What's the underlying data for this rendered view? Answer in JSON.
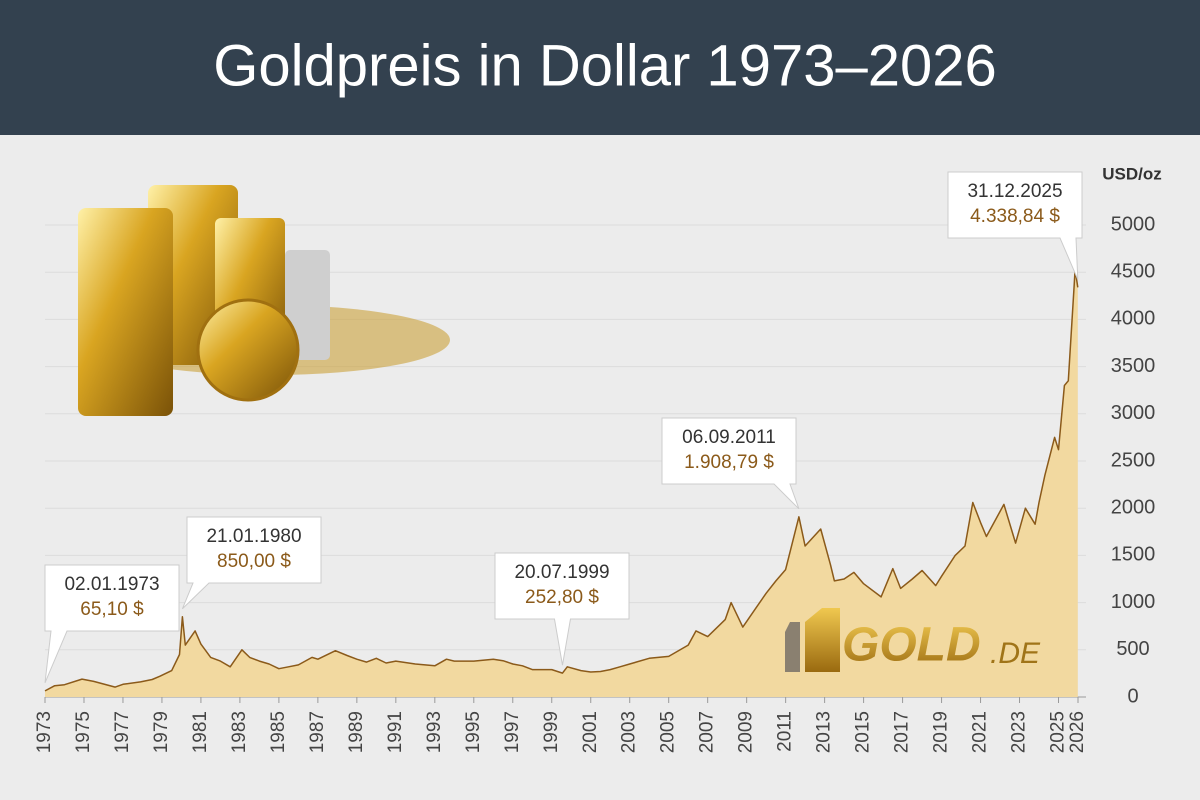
{
  "chart_data": {
    "type": "area",
    "title": "Goldpreis in Dollar 1973–2026",
    "y_label": "USD/oz",
    "logo_text": "GOLD",
    "logo_suffix": ".DE",
    "xlim": [
      1973,
      2026
    ],
    "xticks": [
      1973,
      1975,
      1977,
      1979,
      1981,
      1983,
      1985,
      1987,
      1989,
      1991,
      1993,
      1995,
      1997,
      1999,
      2001,
      2003,
      2005,
      2007,
      2009,
      2011,
      2013,
      2015,
      2017,
      2019,
      2021,
      2023,
      2025,
      2026
    ],
    "ylim": [
      0,
      5000
    ],
    "yticks": [
      0,
      500,
      1000,
      1500,
      2000,
      2500,
      3000,
      3500,
      4000,
      4500,
      5000
    ],
    "grid": true,
    "x": [
      1973.0,
      1973.5,
      1974.0,
      1974.9,
      1975.5,
      1976.6,
      1977.0,
      1977.9,
      1978.5,
      1978.9,
      1979.5,
      1979.9,
      1980.05,
      1980.2,
      1980.7,
      1981.0,
      1981.5,
      1982.0,
      1982.5,
      1983.1,
      1983.5,
      1984.0,
      1984.5,
      1985.0,
      1985.5,
      1986.0,
      1986.7,
      1987.0,
      1987.9,
      1988.5,
      1989.0,
      1989.5,
      1990.0,
      1990.5,
      1991.0,
      1992.0,
      1993.0,
      1993.6,
      1994.0,
      1995.0,
      1996.0,
      1996.5,
      1997.0,
      1997.5,
      1998.0,
      1999.0,
      1999.55,
      1999.8,
      2000.5,
      2001.0,
      2001.5,
      2002.0,
      2002.5,
      2003.0,
      2004.0,
      2005.0,
      2006.0,
      2006.4,
      2007.0,
      2007.9,
      2008.2,
      2008.8,
      2009.5,
      2010.0,
      2010.5,
      2011.0,
      2011.68,
      2012.0,
      2012.8,
      2013.3,
      2013.5,
      2014.0,
      2014.5,
      2015.0,
      2015.9,
      2016.5,
      2016.9,
      2017.5,
      2018.0,
      2018.7,
      2019.0,
      2019.7,
      2020.2,
      2020.6,
      2021.0,
      2021.3,
      2022.2,
      2022.8,
      2023.3,
      2023.8,
      2024.0,
      2024.3,
      2024.8,
      2025.0,
      2025.3,
      2025.5,
      2025.8,
      2025.85,
      2025.99
    ],
    "series": [
      {
        "name": "Goldpreis",
        "color": "#8b5a1a",
        "fill": "#f2d9a0",
        "values": [
          65.1,
          120,
          130,
          190,
          165,
          105,
          135,
          160,
          185,
          220,
          280,
          450,
          850,
          550,
          700,
          560,
          420,
          380,
          320,
          500,
          420,
          380,
          350,
          300,
          320,
          340,
          420,
          400,
          490,
          440,
          400,
          370,
          410,
          360,
          380,
          350,
          330,
          400,
          380,
          380,
          400,
          385,
          350,
          330,
          290,
          290,
          252.8,
          320,
          280,
          265,
          270,
          290,
          320,
          350,
          410,
          430,
          550,
          700,
          640,
          820,
          1000,
          740,
          950,
          1100,
          1230,
          1350,
          1908.79,
          1600,
          1780,
          1400,
          1230,
          1250,
          1320,
          1200,
          1060,
          1360,
          1150,
          1250,
          1340,
          1180,
          1280,
          1500,
          1600,
          2060,
          1850,
          1700,
          2040,
          1630,
          2000,
          1830,
          2060,
          2350,
          2750,
          2620,
          3300,
          3350,
          4350,
          4530,
          4338.84
        ]
      }
    ],
    "annotations": [
      {
        "date": "02.01.1973",
        "x": 1973.0,
        "value": 65.1,
        "value_label": "65,10 $"
      },
      {
        "date": "21.01.1980",
        "x": 1980.05,
        "value": 850,
        "value_label": "850,00 $"
      },
      {
        "date": "20.07.1999",
        "x": 1999.55,
        "value": 252.8,
        "value_label": "252,80 $"
      },
      {
        "date": "06.09.2011",
        "x": 2011.68,
        "value": 1908.79,
        "value_label": "1.908,79 $"
      },
      {
        "date": "31.12.2025",
        "x": 2025.99,
        "value": 4338.84,
        "value_label": "4.338,84 $"
      }
    ]
  }
}
